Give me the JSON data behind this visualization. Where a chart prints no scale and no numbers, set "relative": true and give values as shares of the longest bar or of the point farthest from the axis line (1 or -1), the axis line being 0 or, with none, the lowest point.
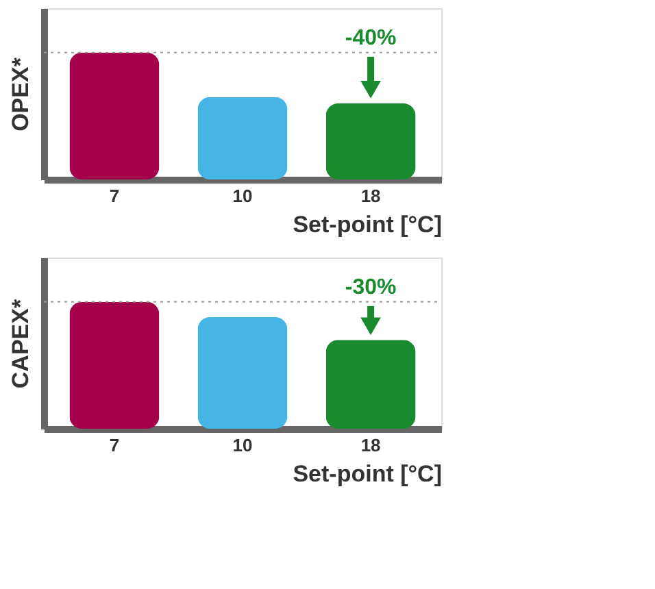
{
  "chart_data": [
    {
      "type": "bar",
      "relative": true,
      "ylabel": "OPEX*",
      "xlabel": "Set-point [°C]",
      "categories": [
        "7",
        "10",
        "18"
      ],
      "values": [
        1,
        0.65,
        0.6
      ],
      "colors": [
        "#a5004a",
        "#45b5e6",
        "#1a8a2e"
      ],
      "ref_lines": [
        {
          "axis": "y",
          "value": 1,
          "color": "#999999",
          "line_style": "dotted"
        }
      ],
      "annotations": [
        {
          "text": "-40%",
          "x": "18",
          "y": 1
        }
      ]
    },
    {
      "type": "bar",
      "relative": true,
      "ylabel": "CAPEX*",
      "xlabel": "Set-point [°C]",
      "categories": [
        "7",
        "10",
        "18"
      ],
      "values": [
        1,
        0.88,
        0.7
      ],
      "colors": [
        "#a5004a",
        "#45b5e6",
        "#1a8a2e"
      ],
      "ref_lines": [
        {
          "axis": "y",
          "value": 1,
          "color": "#999999",
          "line_style": "dotted"
        }
      ],
      "annotations": [
        {
          "text": "-30%",
          "x": "18",
          "y": 1
        }
      ]
    }
  ]
}
